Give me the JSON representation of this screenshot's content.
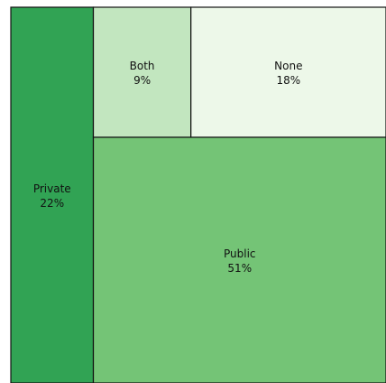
{
  "chart_data": {
    "type": "treemap",
    "title": "",
    "segments": [
      {
        "name": "Private",
        "value": 22,
        "label": "22%",
        "color": "#31a354"
      },
      {
        "name": "Both",
        "value": 9,
        "label": "9%",
        "color": "#c2e6bf"
      },
      {
        "name": "None",
        "value": 18,
        "label": "18%",
        "color": "#edf8e9"
      },
      {
        "name": "Public",
        "value": 51,
        "label": "51%",
        "color": "#74c476"
      }
    ]
  }
}
